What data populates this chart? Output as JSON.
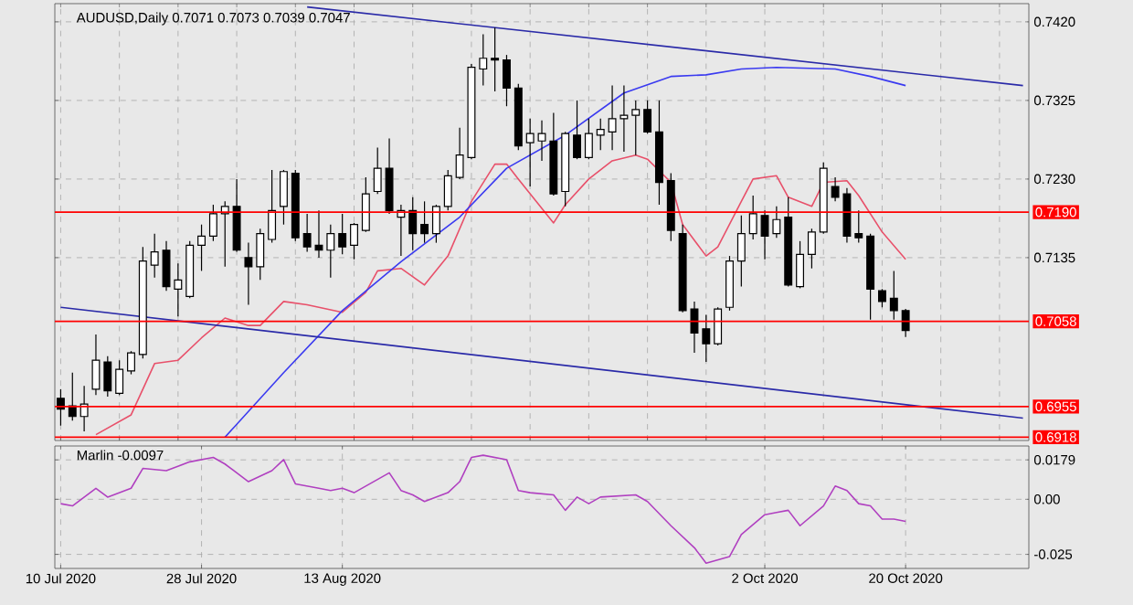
{
  "chart_data": [
    {
      "type": "candlestick",
      "title": "AUDUSD,Daily  0.7071 0.7073 0.7039 0.7047",
      "categories": [
        null,
        null,
        null,
        null,
        null,
        null,
        null,
        null,
        null,
        null,
        null,
        null,
        null,
        null,
        null,
        null,
        null,
        null,
        null,
        null,
        null,
        null,
        null,
        null,
        null,
        null,
        null,
        null,
        null,
        null,
        null,
        null,
        null,
        null,
        null,
        null,
        null,
        null,
        null,
        null,
        null,
        null,
        null,
        null,
        null,
        null,
        null,
        null,
        null,
        null,
        null,
        null,
        null,
        null,
        null,
        null,
        null,
        null,
        null,
        null,
        null,
        null,
        null,
        null,
        null,
        null,
        null,
        null,
        null,
        null,
        null,
        null,
        null,
        null,
        null,
        null,
        null,
        null,
        null,
        null,
        null,
        null,
        null
      ],
      "ohlc": [
        [
          0.6965,
          0.6976,
          0.6932,
          0.6952
        ],
        [
          0.6956,
          0.6996,
          0.6938,
          0.6943
        ],
        [
          0.6943,
          0.698,
          0.6925,
          0.6958
        ],
        [
          0.6976,
          0.7042,
          0.6969,
          0.7011
        ],
        [
          0.7009,
          0.7016,
          0.6967,
          0.6974
        ],
        [
          0.6971,
          0.7011,
          0.6969,
          0.7
        ],
        [
          0.6998,
          0.7022,
          0.6994,
          0.702
        ],
        [
          0.7018,
          0.7148,
          0.7013,
          0.7131
        ],
        [
          0.7126,
          0.7164,
          0.7111,
          0.7142
        ],
        [
          0.7144,
          0.7155,
          0.7095,
          0.71
        ],
        [
          0.7097,
          0.7128,
          0.7064,
          0.7108
        ],
        [
          0.7088,
          0.7155,
          0.7086,
          0.715
        ],
        [
          0.715,
          0.7175,
          0.7119,
          0.7161
        ],
        [
          0.7161,
          0.7199,
          0.7155,
          0.7188
        ],
        [
          0.7188,
          0.7203,
          0.7124,
          0.7197
        ],
        [
          0.7197,
          0.723,
          0.7142,
          0.7144
        ],
        [
          0.7135,
          0.7153,
          0.7078,
          0.7124
        ],
        [
          0.7124,
          0.717,
          0.7108,
          0.7164
        ],
        [
          0.7157,
          0.7241,
          0.7153,
          0.7192
        ],
        [
          0.7197,
          0.7241,
          0.7175,
          0.7239
        ],
        [
          0.7237,
          0.7241,
          0.7155,
          0.7159
        ],
        [
          0.7164,
          0.7188,
          0.7142,
          0.7148
        ],
        [
          0.715,
          0.7192,
          0.7135,
          0.7144
        ],
        [
          0.7144,
          0.7175,
          0.7111,
          0.7164
        ],
        [
          0.7164,
          0.7188,
          0.7139,
          0.7148
        ],
        [
          0.715,
          0.7177,
          0.7133,
          0.7175
        ],
        [
          0.7168,
          0.7232,
          0.7166,
          0.7212
        ],
        [
          0.7215,
          0.7268,
          0.7212,
          0.7243
        ],
        [
          0.7243,
          0.7279,
          0.7188,
          0.7192
        ],
        [
          0.7184,
          0.7199,
          0.7137,
          0.7192
        ],
        [
          0.7192,
          0.7208,
          0.7144,
          0.7164
        ],
        [
          0.7175,
          0.7203,
          0.7153,
          0.7164
        ],
        [
          0.7164,
          0.7199,
          0.7153,
          0.7197
        ],
        [
          0.7197,
          0.7241,
          0.7192,
          0.7234
        ],
        [
          0.7232,
          0.7292,
          0.723,
          0.7259
        ],
        [
          0.7256,
          0.7369,
          0.7254,
          0.7365
        ],
        [
          0.7363,
          0.7405,
          0.7343,
          0.7376
        ],
        [
          0.7376,
          0.7413,
          0.7336,
          0.7374
        ],
        [
          0.7374,
          0.738,
          0.7318,
          0.734
        ],
        [
          0.734,
          0.7345,
          0.7265,
          0.727
        ],
        [
          0.7274,
          0.7303,
          0.7221,
          0.7285
        ],
        [
          0.7276,
          0.7301,
          0.7252,
          0.7285
        ],
        [
          0.7276,
          0.731,
          0.721,
          0.7212
        ],
        [
          0.7215,
          0.7287,
          0.7197,
          0.7285
        ],
        [
          0.7283,
          0.7325,
          0.7254,
          0.7256
        ],
        [
          0.7256,
          0.7303,
          0.7254,
          0.7285
        ],
        [
          0.7283,
          0.7303,
          0.7265,
          0.729
        ],
        [
          0.7287,
          0.7343,
          0.7265,
          0.7303
        ],
        [
          0.7303,
          0.7343,
          0.7263,
          0.7307
        ],
        [
          0.7307,
          0.7325,
          0.7259,
          0.7314
        ],
        [
          0.7314,
          0.7325,
          0.7285,
          0.7287
        ],
        [
          0.7287,
          0.7325,
          0.7199,
          0.7226
        ],
        [
          0.7228,
          0.7237,
          0.7155,
          0.7168
        ],
        [
          0.7164,
          0.7175,
          0.7069,
          0.7071
        ],
        [
          0.7073,
          0.7082,
          0.702,
          0.7044
        ],
        [
          0.7049,
          0.7066,
          0.7009,
          0.7031
        ],
        [
          0.7031,
          0.7075,
          0.7029,
          0.7073
        ],
        [
          0.7075,
          0.7137,
          0.7071,
          0.7131
        ],
        [
          0.7131,
          0.7186,
          0.71,
          0.7164
        ],
        [
          0.7164,
          0.721,
          0.7157,
          0.7188
        ],
        [
          0.7186,
          0.7192,
          0.7133,
          0.7161
        ],
        [
          0.7164,
          0.7197,
          0.7159,
          0.7181
        ],
        [
          0.7184,
          0.7208,
          0.71,
          0.7102
        ],
        [
          0.71,
          0.7155,
          0.7098,
          0.7139
        ],
        [
          0.7139,
          0.717,
          0.7122,
          0.7166
        ],
        [
          0.7166,
          0.725,
          0.7164,
          0.7243
        ],
        [
          0.7221,
          0.7232,
          0.7203,
          0.7208
        ],
        [
          0.7212,
          0.7219,
          0.7153,
          0.7161
        ],
        [
          0.7164,
          0.7192,
          0.7153,
          0.7159
        ],
        [
          0.7161,
          0.7164,
          0.706,
          0.7097
        ],
        [
          0.7095,
          0.7097,
          0.7075,
          0.7082
        ],
        [
          0.7086,
          0.7119,
          0.706,
          0.7071
        ],
        [
          0.7071,
          0.7073,
          0.7039,
          0.7047
        ],
        null,
        null,
        null,
        null,
        null,
        null,
        null,
        null,
        null,
        null
      ],
      "series": [
        {
          "type": "line",
          "color": "#e8506a",
          "values": [
            null,
            null,
            null,
            0.6921,
            null,
            null,
            0.6945,
            null,
            0.7007,
            null,
            0.7011,
            null,
            0.7038,
            null,
            0.7062,
            null,
            0.7053,
            0.7053,
            null,
            0.7082,
            null,
            0.7078,
            null,
            null,
            0.7069,
            null,
            0.7093,
            0.7119,
            null,
            0.7122,
            null,
            0.7102,
            null,
            0.7137,
            null,
            0.7203,
            null,
            0.7248,
            0.7248,
            0.723,
            null,
            null,
            0.7177,
            0.7199,
            null,
            0.723,
            null,
            0.7252,
            null,
            0.7259,
            0.7254,
            null,
            0.7226,
            0.7175,
            null,
            0.7137,
            0.7148,
            null,
            0.7203,
            0.723,
            null,
            0.7234,
            0.7208,
            null,
            0.7197,
            0.7226,
            null,
            0.7228,
            0.721,
            null,
            0.7166,
            null,
            0.7133,
            null,
            null,
            null,
            null,
            null,
            null,
            null,
            null,
            null,
            null
          ]
        },
        {
          "type": "line",
          "color": "#3a3af0",
          "values": [
            null,
            null,
            null,
            null,
            null,
            null,
            null,
            null,
            null,
            null,
            null,
            null,
            null,
            null,
            0.6918,
            null,
            null,
            null,
            null,
            0.6996,
            null,
            null,
            null,
            null,
            0.7071,
            null,
            null,
            null,
            null,
            0.713,
            null,
            null,
            null,
            null,
            0.7184,
            null,
            null,
            null,
            0.7243,
            null,
            null,
            null,
            null,
            0.7283,
            null,
            null,
            null,
            null,
            0.7334,
            null,
            null,
            null,
            0.7354,
            null,
            null,
            0.7356,
            null,
            null,
            0.7363,
            null,
            null,
            0.7365,
            null,
            null,
            null,
            null,
            0.7363,
            null,
            null,
            0.7354,
            null,
            null,
            0.7343,
            null,
            null,
            null,
            null,
            null,
            null,
            null,
            null,
            null,
            null
          ]
        },
        {
          "type": "line",
          "color": "#2a2aa8",
          "values": [
            null,
            null,
            null,
            null,
            null,
            null,
            null,
            null,
            null,
            null,
            null,
            null,
            null,
            null,
            null,
            null,
            null,
            null,
            null,
            null,
            null,
            0.7438,
            null,
            null,
            null,
            null,
            null,
            null,
            null,
            null,
            null,
            null,
            null,
            null,
            null,
            null,
            null,
            null,
            null,
            null,
            null,
            null,
            null,
            null,
            null,
            null,
            null,
            null,
            null,
            null,
            null,
            null,
            null,
            null,
            null,
            null,
            null,
            null,
            null,
            null,
            null,
            null,
            null,
            null,
            null,
            null,
            null,
            null,
            null,
            null,
            null,
            null,
            null,
            null,
            null,
            null,
            null,
            null,
            null,
            null,
            null,
            null,
            0.7343
          ]
        },
        {
          "type": "line",
          "color": "#2a2aa8",
          "values": [
            0.7075,
            null,
            null,
            null,
            null,
            null,
            null,
            null,
            null,
            null,
            null,
            null,
            null,
            null,
            null,
            null,
            null,
            null,
            null,
            null,
            null,
            null,
            null,
            null,
            null,
            null,
            null,
            null,
            null,
            null,
            null,
            null,
            null,
            null,
            null,
            null,
            null,
            null,
            null,
            null,
            null,
            null,
            null,
            null,
            null,
            null,
            null,
            null,
            null,
            null,
            null,
            null,
            null,
            null,
            null,
            null,
            null,
            null,
            null,
            null,
            null,
            null,
            null,
            null,
            null,
            null,
            null,
            null,
            null,
            null,
            null,
            null,
            null,
            null,
            null,
            null,
            null,
            null,
            null,
            null,
            null,
            null,
            0.6941
          ]
        }
      ],
      "ylim": [
        0.6914,
        0.7442
      ],
      "yticks": [
        {
          "value": 0.742,
          "label": "0.7420"
        },
        {
          "value": 0.7325,
          "label": "0.7325"
        },
        {
          "value": 0.723,
          "label": "0.7230"
        },
        {
          "value": 0.7135,
          "label": "0.7135"
        }
      ],
      "ref_lines": [
        {
          "axis": "y",
          "value": 0.719,
          "label": "0.7190",
          "color": "#ff0000"
        },
        {
          "axis": "y",
          "value": 0.7058,
          "label": "0.7058",
          "color": "#ff0000"
        },
        {
          "axis": "y",
          "value": 0.6955,
          "label": "0.6955",
          "color": "#ff0000"
        },
        {
          "axis": "y",
          "value": 0.6918,
          "label": "0.6918",
          "color": "#ff0000"
        }
      ],
      "grid": true,
      "tick_labels": "y"
    },
    {
      "type": "line",
      "title": "Marlin -0.0097",
      "categories": [
        "10 Jul 2020",
        null,
        null,
        null,
        null,
        null,
        null,
        null,
        null,
        null,
        null,
        null,
        "28 Jul 2020",
        null,
        null,
        null,
        null,
        null,
        null,
        null,
        null,
        null,
        null,
        null,
        "13 Aug 2020",
        null,
        null,
        null,
        null,
        null,
        null,
        null,
        null,
        null,
        null,
        null,
        null,
        null,
        null,
        null,
        null,
        null,
        null,
        null,
        null,
        null,
        null,
        null,
        null,
        null,
        null,
        null,
        null,
        null,
        null,
        null,
        null,
        null,
        null,
        null,
        "2 Oct 2020",
        null,
        null,
        null,
        null,
        null,
        null,
        null,
        null,
        null,
        null,
        null,
        "20 Oct 2020",
        null,
        null,
        null,
        null,
        null,
        null,
        null,
        null,
        null,
        null
      ],
      "series": [
        {
          "color": "#b040c0",
          "values": [
            -0.002,
            -0.003,
            null,
            0.005,
            0.001,
            null,
            0.005,
            0.014,
            null,
            0.013,
            null,
            0.017,
            null,
            0.019,
            0.016,
            null,
            0.008,
            null,
            0.013,
            0.018,
            0.007,
            null,
            0.005,
            0.004,
            0.005,
            0.003,
            null,
            0.009,
            0.012,
            0.004,
            0.002,
            -0.001,
            null,
            0.003,
            0.008,
            0.019,
            0.02,
            null,
            0.018,
            0.004,
            0.003,
            null,
            0.002,
            -0.005,
            0.001,
            -0.002,
            0.001,
            null,
            null,
            0.002,
            -0.001,
            null,
            -0.012,
            null,
            -0.022,
            -0.029,
            null,
            -0.026,
            -0.016,
            null,
            -0.007,
            -0.006,
            -0.005,
            -0.012,
            null,
            -0.003,
            0.006,
            0.004,
            -0.002,
            -0.003,
            -0.009,
            -0.009,
            -0.01,
            null,
            null,
            null,
            null,
            null,
            null,
            null,
            null,
            null,
            null
          ]
        }
      ],
      "ylim": [
        -0.0314,
        0.0242
      ],
      "yticks": [
        0.0179,
        {
          "value": 0,
          "label": "0.00"
        },
        -0.025
      ],
      "grid": true
    }
  ]
}
